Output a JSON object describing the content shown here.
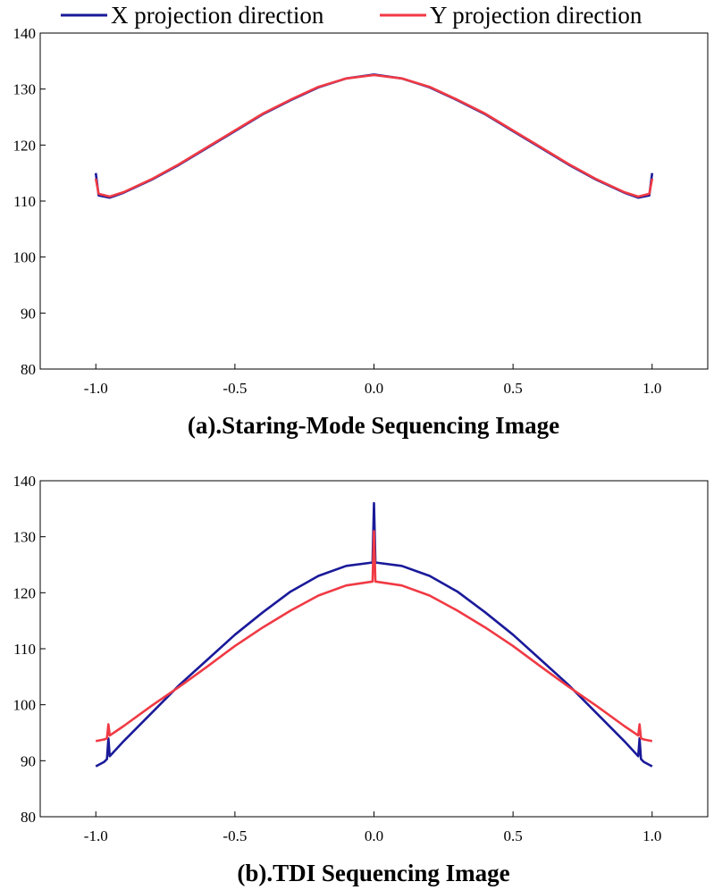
{
  "legend": [
    {
      "label": "X projection direction",
      "color": "#1a1a9a"
    },
    {
      "label": "Y projection direction",
      "color": "#f03a44"
    }
  ],
  "chart_data": [
    {
      "type": "line",
      "caption": "(a).Staring-Mode Sequencing Image",
      "xlim": [
        -1.2,
        1.2
      ],
      "ylim": [
        80,
        140
      ],
      "xticks": [
        -1.0,
        -0.5,
        0.0,
        0.5,
        1.0
      ],
      "yticks": [
        80,
        90,
        100,
        110,
        120,
        130,
        140
      ],
      "grid": false,
      "series": [
        {
          "name": "X projection direction",
          "color": "#1a1a9a",
          "x": [
            -1.0,
            -0.99,
            -0.95,
            -0.9,
            -0.8,
            -0.7,
            -0.6,
            -0.5,
            -0.4,
            -0.3,
            -0.2,
            -0.1,
            0.0,
            0.1,
            0.2,
            0.3,
            0.4,
            0.5,
            0.6,
            0.7,
            0.8,
            0.9,
            0.95,
            0.99,
            1.0
          ],
          "y": [
            115,
            111,
            110.6,
            111.5,
            113.8,
            116.5,
            119.5,
            122.5,
            125.5,
            128,
            130.3,
            131.9,
            132.6,
            131.9,
            130.3,
            128,
            125.5,
            122.5,
            119.5,
            116.5,
            113.8,
            111.5,
            110.6,
            111,
            115
          ]
        },
        {
          "name": "Y projection direction",
          "color": "#f03a44",
          "x": [
            -1.0,
            -0.99,
            -0.95,
            -0.9,
            -0.8,
            -0.7,
            -0.6,
            -0.5,
            -0.4,
            -0.3,
            -0.2,
            -0.1,
            0.0,
            0.1,
            0.2,
            0.3,
            0.4,
            0.5,
            0.6,
            0.7,
            0.8,
            0.9,
            0.95,
            0.99,
            1.0
          ],
          "y": [
            114,
            111.3,
            110.8,
            111.6,
            113.9,
            116.6,
            119.6,
            122.6,
            125.6,
            128.1,
            130.4,
            131.9,
            132.5,
            131.9,
            130.4,
            128.1,
            125.6,
            122.6,
            119.6,
            116.6,
            113.9,
            111.6,
            110.8,
            111.3,
            114
          ]
        }
      ]
    },
    {
      "type": "line",
      "caption": "(b).TDI Sequencing Image",
      "xlim": [
        -1.2,
        1.2
      ],
      "ylim": [
        80,
        140
      ],
      "xticks": [
        -1.0,
        -0.5,
        0.0,
        0.5,
        1.0
      ],
      "yticks": [
        80,
        90,
        100,
        110,
        120,
        130,
        140
      ],
      "grid": false,
      "series": [
        {
          "name": "X projection direction",
          "color": "#1a1a9a",
          "x": [
            -1.0,
            -0.97,
            -0.96,
            -0.955,
            -0.95,
            -0.9,
            -0.8,
            -0.7,
            -0.6,
            -0.5,
            -0.4,
            -0.3,
            -0.2,
            -0.1,
            -0.005,
            0.0,
            0.005,
            0.1,
            0.2,
            0.3,
            0.4,
            0.5,
            0.6,
            0.7,
            0.8,
            0.9,
            0.95,
            0.955,
            0.96,
            0.97,
            1.0
          ],
          "y": [
            89,
            89.8,
            90.3,
            94,
            90.8,
            93.5,
            98.5,
            103.5,
            108,
            112.5,
            116.5,
            120.2,
            123,
            124.8,
            125.4,
            136,
            125.4,
            124.8,
            123,
            120.2,
            116.5,
            112.5,
            108,
            103.5,
            98.5,
            93.5,
            90.8,
            94,
            90.3,
            89.8,
            89
          ]
        },
        {
          "name": "Y projection direction",
          "color": "#f03a44",
          "x": [
            -1.0,
            -0.97,
            -0.96,
            -0.955,
            -0.95,
            -0.9,
            -0.8,
            -0.7,
            -0.6,
            -0.5,
            -0.4,
            -0.3,
            -0.2,
            -0.1,
            -0.005,
            0.0,
            0.005,
            0.1,
            0.2,
            0.3,
            0.4,
            0.5,
            0.6,
            0.7,
            0.8,
            0.9,
            0.95,
            0.955,
            0.96,
            0.97,
            1.0
          ],
          "y": [
            93.5,
            93.8,
            94,
            96.5,
            94.5,
            96.2,
            99.8,
            103.2,
            106.8,
            110.5,
            113.8,
            116.8,
            119.5,
            121.3,
            122,
            131,
            122,
            121.3,
            119.5,
            116.8,
            113.8,
            110.5,
            106.8,
            103.2,
            99.8,
            96.2,
            94.5,
            96.5,
            94,
            93.8,
            93.5
          ]
        }
      ]
    }
  ]
}
